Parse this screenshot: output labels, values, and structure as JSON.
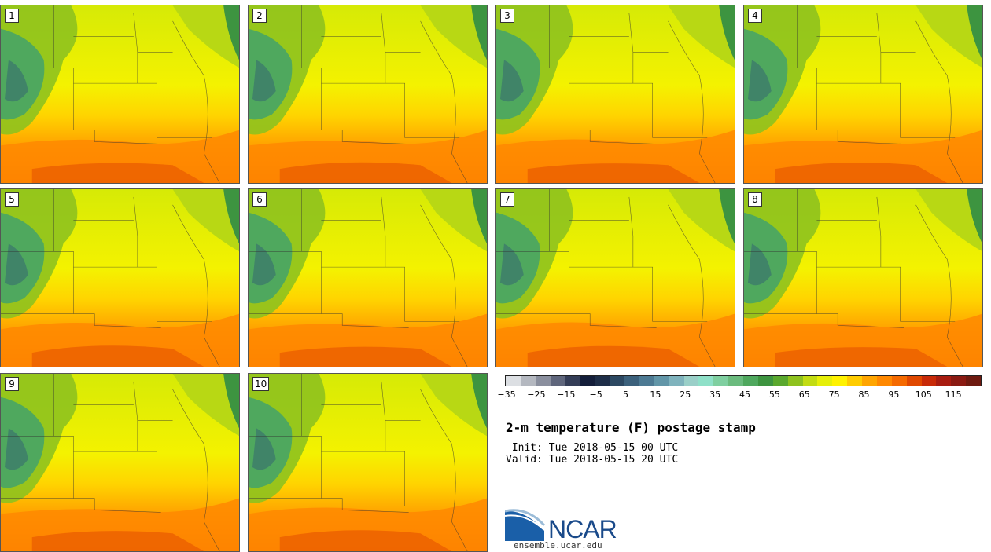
{
  "panels": [
    {
      "label": "1"
    },
    {
      "label": "2"
    },
    {
      "label": "3"
    },
    {
      "label": "4"
    },
    {
      "label": "5"
    },
    {
      "label": "6"
    },
    {
      "label": "7"
    },
    {
      "label": "8"
    },
    {
      "label": "9"
    },
    {
      "label": "10"
    }
  ],
  "colorbar": {
    "colors": [
      "#dcdfe3",
      "#b4b8c0",
      "#8a8f9e",
      "#5f667c",
      "#343d57",
      "#141e3a",
      "#1e2e48",
      "#2c4862",
      "#3c617c",
      "#4d7a93",
      "#6296a8",
      "#7fb3bd",
      "#9acfc8",
      "#8fe0c8",
      "#7fcfa0",
      "#6bbb7e",
      "#4fa85e",
      "#3d9440",
      "#5aa82e",
      "#8ec21e",
      "#c2dc12",
      "#e6ef08",
      "#fff200",
      "#ffcc00",
      "#ffa500",
      "#ff8800",
      "#f56a00",
      "#e04800",
      "#c82a08",
      "#a81c10",
      "#8a1a12",
      "#6e1a10"
    ],
    "tick_labels": [
      "−35",
      "−25",
      "−15",
      "−5",
      "5",
      "15",
      "25",
      "35",
      "45",
      "55",
      "65",
      "75",
      "85",
      "95",
      "105",
      "115"
    ]
  },
  "title": "2-m temperature (F) postage stamp",
  "init": " Init: Tue 2018-05-15 00 UTC",
  "valid": "Valid: Tue 2018-05-15 20 UTC",
  "logo": {
    "text": "NCAR",
    "color": "#1a4a8a"
  },
  "site": "ensemble.ucar.edu"
}
